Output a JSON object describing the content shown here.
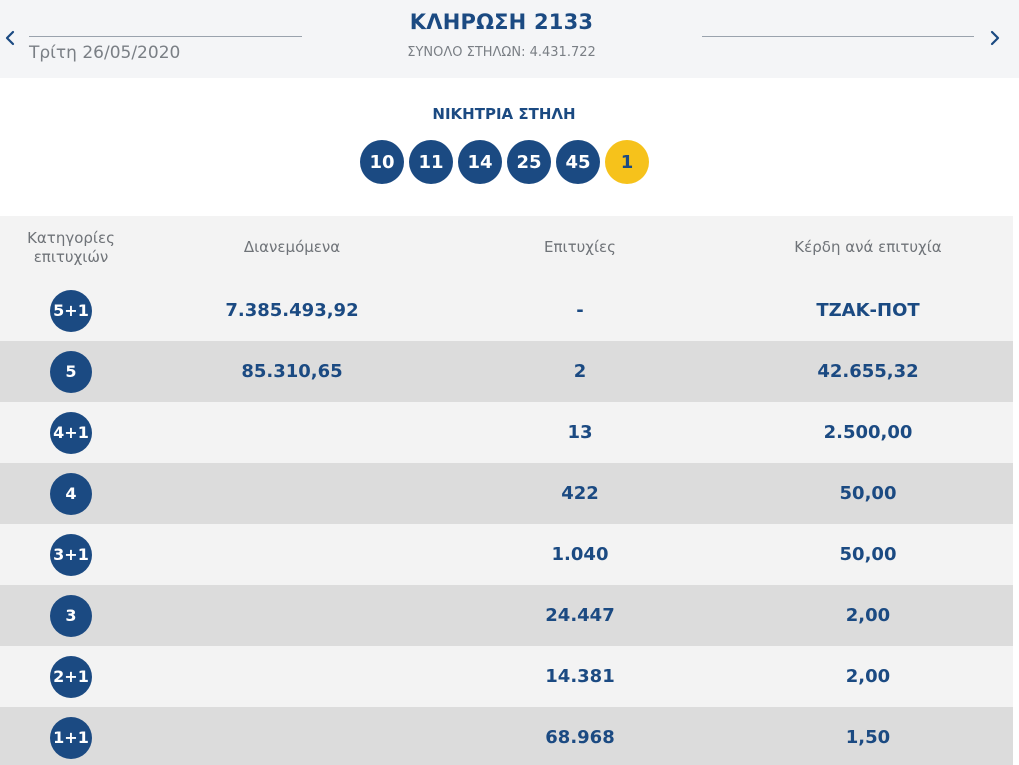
{
  "header": {
    "draw_title": "ΚΛΗΡΩΣΗ 2133",
    "date": "Τρίτη 26/05/2020",
    "total_columns": "ΣΥΝΟΛΟ ΣΤΗΛΩΝ: 4.431.722",
    "prev_icon": "chevron-left-icon",
    "next_icon": "chevron-right-icon"
  },
  "winning": {
    "label": "ΝΙΚΗΤΡΙΑ ΣΤΗΛΗ",
    "numbers": [
      "10",
      "11",
      "14",
      "25",
      "45"
    ],
    "joker": "1"
  },
  "table": {
    "headers": {
      "category": "Κατηγορίες επιτυχιών",
      "distributed": "Διανεμόμενα",
      "winners": "Επιτυχίες",
      "prize": "Κέρδη ανά επιτυχία"
    },
    "rows": [
      {
        "category": "5+1",
        "distributed": "7.385.493,92",
        "winners": "-",
        "prize": "ΤΖΑΚ-ΠΟΤ"
      },
      {
        "category": "5",
        "distributed": "85.310,65",
        "winners": "2",
        "prize": "42.655,32"
      },
      {
        "category": "4+1",
        "distributed": "",
        "winners": "13",
        "prize": "2.500,00"
      },
      {
        "category": "4",
        "distributed": "",
        "winners": "422",
        "prize": "50,00"
      },
      {
        "category": "3+1",
        "distributed": "",
        "winners": "1.040",
        "prize": "50,00"
      },
      {
        "category": "3",
        "distributed": "",
        "winners": "24.447",
        "prize": "2,00"
      },
      {
        "category": "2+1",
        "distributed": "",
        "winners": "14.381",
        "prize": "2,00"
      },
      {
        "category": "1+1",
        "distributed": "",
        "winners": "68.968",
        "prize": "1,50"
      }
    ]
  },
  "colors": {
    "primary_blue": "#1b4a82",
    "joker_yellow": "#f6c21b",
    "row_light": "#f3f3f3",
    "row_dark": "#dcdcdc"
  }
}
